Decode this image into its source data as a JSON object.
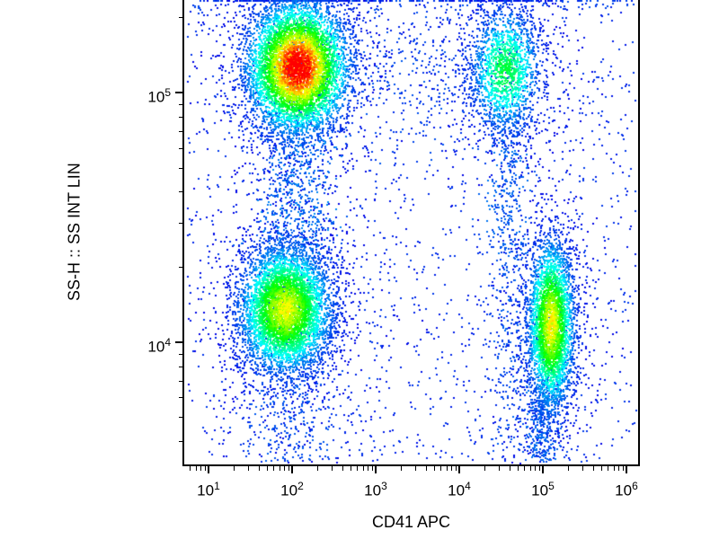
{
  "figure": {
    "background": "#ffffff",
    "axis_color": "#000000"
  },
  "chart_data": {
    "type": "scatter",
    "subtype": "flow-cytometry-density-dot-plot",
    "title": "",
    "xlabel": "CD41 APC",
    "ylabel": "SS-H :: SS INT LIN",
    "x_scale": "log10",
    "y_scale": "log10",
    "xlim_log10": [
      0.71,
      6.14
    ],
    "ylim_log10": [
      3.51,
      5.37
    ],
    "tick_label_base": "10",
    "x_major_ticks_exponents": [
      1,
      2,
      3,
      4,
      5,
      6
    ],
    "y_major_ticks_exponents": [
      4,
      5
    ],
    "minor_ticks": {
      "x_decades": [
        0,
        1,
        2,
        3,
        4,
        5,
        6
      ],
      "y_decades": [
        3,
        4,
        5
      ],
      "multiples": [
        2,
        3,
        4,
        5,
        6,
        7,
        8,
        9
      ]
    },
    "grid": false,
    "legend": false,
    "colormap": {
      "name": "jet",
      "stops": [
        [
          0,
          0,
          230
        ],
        [
          0,
          255,
          255
        ],
        [
          0,
          255,
          0
        ],
        [
          255,
          255,
          0
        ],
        [
          255,
          0,
          0
        ]
      ]
    },
    "seed": 7,
    "populations": [
      {
        "name": "cd41neg-high-ssc-core",
        "type": "gauss",
        "n": 6000,
        "cx": 2.07,
        "cy": 5.1,
        "sx": 0.3,
        "sy": 0.13,
        "w": 1.0
      },
      {
        "name": "cd41neg-high-ssc-halo",
        "type": "gauss",
        "n": 700,
        "cx": 2.07,
        "cy": 5.1,
        "sx": 0.52,
        "sy": 0.26,
        "w": 0.12
      },
      {
        "name": "cd41neg-low-ssc-core",
        "type": "gauss",
        "n": 5200,
        "cx": 1.92,
        "cy": 4.13,
        "sx": 0.28,
        "sy": 0.13,
        "w": 0.68
      },
      {
        "name": "cd41neg-low-ssc-halo",
        "type": "gauss",
        "n": 600,
        "cx": 1.92,
        "cy": 4.13,
        "sx": 0.48,
        "sy": 0.26,
        "w": 0.1
      },
      {
        "name": "cd41pos-high-ssc-core",
        "type": "gauss",
        "n": 1500,
        "cx": 4.55,
        "cy": 5.09,
        "sx": 0.22,
        "sy": 0.13,
        "w": 0.42
      },
      {
        "name": "cd41pos-high-ssc-halo",
        "type": "gauss",
        "n": 400,
        "cx": 4.55,
        "cy": 5.09,
        "sx": 0.42,
        "sy": 0.22,
        "w": 0.08
      },
      {
        "name": "cd41pos-low-ssc-core",
        "type": "gauss",
        "n": 3300,
        "cx": 5.1,
        "cy": 4.07,
        "sx": 0.14,
        "sy": 0.17,
        "w": 0.7
      },
      {
        "name": "cd41pos-low-ssc-halo",
        "type": "gauss",
        "n": 450,
        "cx": 5.08,
        "cy": 4.05,
        "sx": 0.28,
        "sy": 0.3,
        "w": 0.1
      },
      {
        "name": "band-between-left-clusters",
        "type": "vband",
        "n": 700,
        "cx": 2.05,
        "sx": 0.24,
        "y0": 4.32,
        "y1": 4.92,
        "w": 0.14
      },
      {
        "name": "band-below-left-lower-cluster",
        "type": "vband",
        "n": 260,
        "cx": 1.95,
        "sx": 0.3,
        "y0": 3.52,
        "y1": 3.9,
        "w": 0.1
      },
      {
        "name": "band-below-cd41pos-upper-cluster",
        "type": "vband",
        "n": 300,
        "cx": 4.58,
        "sx": 0.14,
        "y0": 4.35,
        "y1": 4.92,
        "w": 0.12
      },
      {
        "name": "band-mid-right-column",
        "type": "vband",
        "n": 220,
        "cx": 4.6,
        "sx": 0.13,
        "y0": 3.55,
        "y1": 4.4,
        "w": 0.1
      },
      {
        "name": "band-below-platelet-cluster",
        "type": "vband",
        "n": 360,
        "cx": 5.0,
        "sx": 0.1,
        "y0": 3.52,
        "y1": 3.86,
        "w": 0.12
      },
      {
        "name": "band-top-edge-clipped-events",
        "type": "hband",
        "n": 170,
        "x0": 0.8,
        "x1": 6.1,
        "cy": 5.36,
        "sy": 0.03,
        "w": 0.08
      },
      {
        "name": "band-upper-middle-scatter",
        "type": "hband",
        "n": 260,
        "x0": 2.6,
        "x1": 4.3,
        "cy": 5.06,
        "sy": 0.14,
        "w": 0.09
      },
      {
        "name": "background-scatter",
        "type": "uniform",
        "n": 1700,
        "x0": 0.75,
        "x1": 6.12,
        "y0": 3.52,
        "y1": 5.36,
        "w": 0.06
      }
    ]
  }
}
